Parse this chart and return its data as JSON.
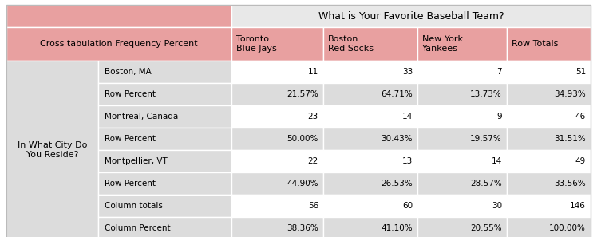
{
  "title": "What is Your Favorite Baseball Team?",
  "cross_tab_label": "Cross tabulation Frequency Percent",
  "left_label": "In What City Do\nYou Reside?",
  "col_headers": [
    "Toronto\nBlue Jays",
    "Boston\nRed Socks",
    "New York\nYankees",
    "Row Totals"
  ],
  "rows": [
    [
      "Boston, MA",
      "11",
      "33",
      "7",
      "51"
    ],
    [
      "Row Percent",
      "21.57%",
      "64.71%",
      "13.73%",
      "34.93%"
    ],
    [
      "Montreal, Canada",
      "23",
      "14",
      "9",
      "46"
    ],
    [
      "Row Percent",
      "50.00%",
      "30.43%",
      "19.57%",
      "31.51%"
    ],
    [
      "Montpellier, VT",
      "22",
      "13",
      "14",
      "49"
    ],
    [
      "Row Percent",
      "44.90%",
      "26.53%",
      "28.57%",
      "33.56%"
    ],
    [
      "Column totals",
      "56",
      "60",
      "30",
      "146"
    ],
    [
      "Column Percent",
      "38.36%",
      "41.10%",
      "20.55%",
      "100.00%"
    ]
  ],
  "pink": "#E8A0A0",
  "light_gray": "#DCDCDC",
  "white": "#FFFFFF",
  "title_gray": "#E8E8E8",
  "border": "#FFFFFF",
  "font_size_title": 9.0,
  "font_size_header": 8.0,
  "font_size_data": 7.5
}
